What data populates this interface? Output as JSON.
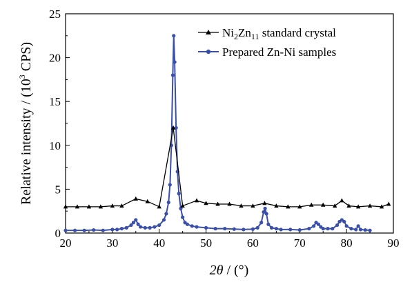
{
  "chart_data": {
    "type": "line",
    "title": "",
    "xlabel": {
      "italic_symbol": "2θ",
      "rest": " / (°)"
    },
    "ylabel": {
      "pre": "Relative intensity / (10",
      "sup": "3",
      "post": " CPS)"
    },
    "xlim": [
      20,
      90
    ],
    "ylim": [
      0,
      25
    ],
    "xticks": [
      "20",
      "30",
      "40",
      "50",
      "60",
      "70",
      "80",
      "90"
    ],
    "yticks": [
      "0",
      "5",
      "10",
      "15",
      "20",
      "25"
    ],
    "grid": false,
    "legend_position": "top-right",
    "series": [
      {
        "name": "Ni2Zn11 standard crystal",
        "legend": {
          "p1": "Ni",
          "s1": "2",
          "p2": "Zn",
          "s2": "11",
          "p3": " standard crystal"
        },
        "color": "#000000",
        "marker": "triangle",
        "x": [
          20,
          22.5,
          25,
          27.5,
          30,
          32,
          35,
          37.5,
          40,
          43,
          45,
          48,
          50,
          52.5,
          55,
          57.5,
          60,
          62.5,
          65,
          67.5,
          70,
          72.5,
          75,
          77.5,
          79,
          80.5,
          82.5,
          85,
          87.5,
          89
        ],
        "y": [
          3.0,
          3.0,
          3.0,
          3.0,
          3.1,
          3.1,
          3.9,
          3.6,
          3.0,
          12.0,
          3.1,
          3.7,
          3.4,
          3.3,
          3.3,
          3.1,
          3.1,
          3.4,
          3.1,
          3.0,
          3.0,
          3.2,
          3.2,
          3.1,
          3.7,
          3.1,
          3.0,
          3.1,
          3.0,
          3.3
        ]
      },
      {
        "name": "Prepared Zn-Ni samples",
        "color": "#3a4fa8",
        "marker": "circle",
        "x": [
          20,
          22,
          24,
          26,
          28,
          30,
          31,
          32,
          33,
          34,
          34.5,
          35,
          35.5,
          36,
          37,
          38,
          39,
          40,
          41,
          41.5,
          42,
          42.3,
          42.6,
          42.9,
          43.1,
          43.3,
          43.6,
          43.9,
          44.2,
          44.6,
          45,
          45.5,
          46,
          47,
          48,
          50,
          52,
          54,
          56,
          58,
          60,
          61,
          61.8,
          62.3,
          62.6,
          62.9,
          63.3,
          64,
          65,
          66,
          68,
          70,
          72,
          73,
          73.5,
          74,
          74.5,
          75,
          76,
          77,
          78,
          78.5,
          79,
          79.5,
          80,
          81,
          82,
          82.5,
          83,
          84,
          85
        ],
        "y": [
          0.3,
          0.3,
          0.3,
          0.35,
          0.3,
          0.4,
          0.4,
          0.5,
          0.6,
          0.9,
          1.2,
          1.5,
          1.0,
          0.7,
          0.6,
          0.6,
          0.7,
          0.9,
          1.5,
          2.2,
          3.5,
          5.5,
          10.0,
          18.0,
          22.5,
          19.5,
          12.0,
          7.0,
          4.5,
          2.8,
          1.8,
          1.2,
          1.0,
          0.8,
          0.7,
          0.6,
          0.5,
          0.5,
          0.45,
          0.4,
          0.45,
          0.6,
          1.2,
          2.4,
          2.8,
          2.2,
          1.0,
          0.6,
          0.5,
          0.4,
          0.4,
          0.35,
          0.5,
          0.8,
          1.2,
          1.0,
          0.7,
          0.5,
          0.5,
          0.5,
          0.9,
          1.3,
          1.5,
          1.3,
          0.8,
          0.5,
          0.4,
          0.8,
          0.4,
          0.35,
          0.3
        ]
      }
    ]
  }
}
